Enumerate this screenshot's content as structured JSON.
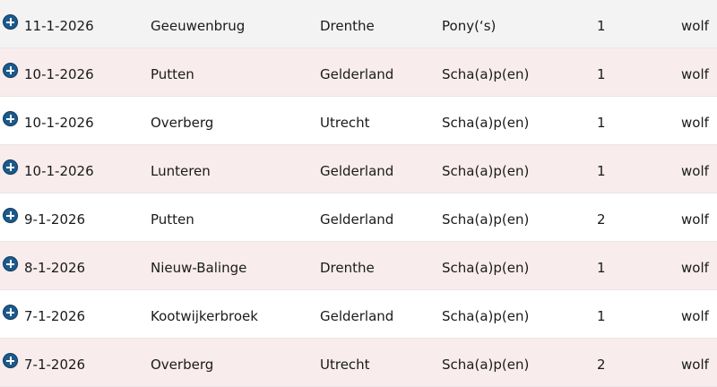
{
  "rows": [
    {
      "date": "11-1-2026",
      "place": "Geeuwenbrug",
      "province": "Drenthe",
      "animal": "Pony(‘s)",
      "count": "1",
      "predator": "wolf"
    },
    {
      "date": "10-1-2026",
      "place": "Putten",
      "province": "Gelderland",
      "animal": "Scha(a)p(en)",
      "count": "1",
      "predator": "wolf"
    },
    {
      "date": "10-1-2026",
      "place": "Overberg",
      "province": "Utrecht",
      "animal": "Scha(a)p(en)",
      "count": "1",
      "predator": "wolf"
    },
    {
      "date": "10-1-2026",
      "place": "Lunteren",
      "province": "Gelderland",
      "animal": "Scha(a)p(en)",
      "count": "1",
      "predator": "wolf"
    },
    {
      "date": "9-1-2026",
      "place": "Putten",
      "province": "Gelderland",
      "animal": "Scha(a)p(en)",
      "count": "2",
      "predator": "wolf"
    },
    {
      "date": "8-1-2026",
      "place": "Nieuw-Balinge",
      "province": "Drenthe",
      "animal": "Scha(a)p(en)",
      "count": "1",
      "predator": "wolf"
    },
    {
      "date": "7-1-2026",
      "place": "Kootwijkerbroek",
      "province": "Gelderland",
      "animal": "Scha(a)p(en)",
      "count": "1",
      "predator": "wolf"
    },
    {
      "date": "7-1-2026",
      "place": "Overberg",
      "province": "Utrecht",
      "animal": "Scha(a)p(en)",
      "count": "2",
      "predator": "wolf"
    }
  ],
  "icons": {
    "expand": "plus-circle-icon"
  },
  "colors": {
    "icon": "#1c5a8c",
    "row_alt": "#f8ecec",
    "row_first": "#f3f3f3"
  }
}
